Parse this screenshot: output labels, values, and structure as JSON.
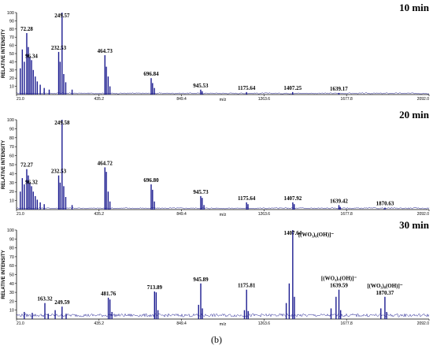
{
  "caption": "(b)",
  "chart_data": [
    {
      "type": "line",
      "title": "10 min",
      "xlabel": "m/z",
      "ylabel": "RELATIVE INTENSITY",
      "xlim": [
        21.0,
        2092.0
      ],
      "ylim": [
        0,
        100
      ],
      "x_ticks": [
        "21.0",
        "435.2",
        "849.4",
        "1263.6",
        "1677.8",
        "2092.0"
      ],
      "y_ticks": [
        "10",
        "20",
        "30",
        "40",
        "50",
        "60",
        "70",
        "80",
        "90",
        "100"
      ],
      "color": "#1b1b8f",
      "peaks": [
        {
          "x": 40,
          "y": 32
        },
        {
          "x": 50,
          "y": 55
        },
        {
          "x": 60,
          "y": 40
        },
        {
          "x": 72.28,
          "y": 75
        },
        {
          "x": 80,
          "y": 58
        },
        {
          "x": 88,
          "y": 46
        },
        {
          "x": 96.34,
          "y": 42
        },
        {
          "x": 105,
          "y": 30
        },
        {
          "x": 115,
          "y": 22
        },
        {
          "x": 125,
          "y": 16
        },
        {
          "x": 140,
          "y": 12
        },
        {
          "x": 160,
          "y": 8
        },
        {
          "x": 185,
          "y": 6
        },
        {
          "x": 232.53,
          "y": 52
        },
        {
          "x": 240,
          "y": 40
        },
        {
          "x": 249.57,
          "y": 100
        },
        {
          "x": 258,
          "y": 25
        },
        {
          "x": 268,
          "y": 15
        },
        {
          "x": 300,
          "y": 6
        },
        {
          "x": 464.73,
          "y": 48
        },
        {
          "x": 472,
          "y": 34
        },
        {
          "x": 481,
          "y": 22
        },
        {
          "x": 490,
          "y": 10
        },
        {
          "x": 696.84,
          "y": 20
        },
        {
          "x": 704,
          "y": 14
        },
        {
          "x": 713,
          "y": 8
        },
        {
          "x": 945.53,
          "y": 6
        },
        {
          "x": 953,
          "y": 4
        },
        {
          "x": 1175.64,
          "y": 3
        },
        {
          "x": 1407.25,
          "y": 3
        },
        {
          "x": 1639.17,
          "y": 2
        }
      ],
      "labels": [
        {
          "text": "72.28",
          "x": 72.28,
          "y": 75
        },
        {
          "text": "96.34",
          "x": 96.34,
          "y": 42
        },
        {
          "text": "232.53",
          "x": 232.53,
          "y": 52
        },
        {
          "text": "249.57",
          "x": 249.57,
          "y": 100
        },
        {
          "text": "464.73",
          "x": 464.73,
          "y": 48
        },
        {
          "text": "696.84",
          "x": 696.84,
          "y": 20
        },
        {
          "text": "945.53",
          "x": 945.53,
          "y": 6
        },
        {
          "text": "1175.64",
          "x": 1175.64,
          "y": 3
        },
        {
          "text": "1407.25",
          "x": 1407.25,
          "y": 3
        },
        {
          "text": "1639.17",
          "x": 1639.17,
          "y": 2
        }
      ]
    },
    {
      "type": "line",
      "title": "20 min",
      "xlabel": "m/z",
      "ylabel": "RELATIVE INTENSITY",
      "xlim": [
        21.0,
        2092.0
      ],
      "ylim": [
        0,
        100
      ],
      "x_ticks": [
        "21.0",
        "435.2",
        "849.4",
        "1263.6",
        "1677.8",
        "2092.0"
      ],
      "y_ticks": [
        "10",
        "20",
        "30",
        "40",
        "50",
        "60",
        "70",
        "80",
        "90",
        "100"
      ],
      "color": "#1b1b8f",
      "peaks": [
        {
          "x": 40,
          "y": 20
        },
        {
          "x": 50,
          "y": 35
        },
        {
          "x": 60,
          "y": 28
        },
        {
          "x": 72.27,
          "y": 45
        },
        {
          "x": 80,
          "y": 38
        },
        {
          "x": 88,
          "y": 30
        },
        {
          "x": 96.32,
          "y": 26
        },
        {
          "x": 105,
          "y": 20
        },
        {
          "x": 115,
          "y": 15
        },
        {
          "x": 125,
          "y": 11
        },
        {
          "x": 140,
          "y": 8
        },
        {
          "x": 160,
          "y": 6
        },
        {
          "x": 232.53,
          "y": 38
        },
        {
          "x": 240,
          "y": 30
        },
        {
          "x": 249.58,
          "y": 100
        },
        {
          "x": 258,
          "y": 26
        },
        {
          "x": 268,
          "y": 14
        },
        {
          "x": 300,
          "y": 5
        },
        {
          "x": 464.72,
          "y": 47
        },
        {
          "x": 472,
          "y": 42
        },
        {
          "x": 481,
          "y": 20
        },
        {
          "x": 490,
          "y": 9
        },
        {
          "x": 696.8,
          "y": 28
        },
        {
          "x": 704,
          "y": 22
        },
        {
          "x": 713,
          "y": 9
        },
        {
          "x": 945.73,
          "y": 15
        },
        {
          "x": 953,
          "y": 13
        },
        {
          "x": 962,
          "y": 5
        },
        {
          "x": 1175.64,
          "y": 8
        },
        {
          "x": 1183,
          "y": 6
        },
        {
          "x": 1407.92,
          "y": 8
        },
        {
          "x": 1415,
          "y": 6
        },
        {
          "x": 1639.42,
          "y": 5
        },
        {
          "x": 1646,
          "y": 3
        },
        {
          "x": 1870.63,
          "y": 2
        }
      ],
      "labels": [
        {
          "text": "72.27",
          "x": 72.27,
          "y": 45
        },
        {
          "text": "96.32",
          "x": 96.32,
          "y": 26
        },
        {
          "text": "232.53",
          "x": 232.53,
          "y": 38
        },
        {
          "text": "249.58",
          "x": 249.58,
          "y": 100
        },
        {
          "text": "464.72",
          "x": 464.72,
          "y": 47
        },
        {
          "text": "696.80",
          "x": 696.8,
          "y": 28
        },
        {
          "text": "945.73",
          "x": 945.73,
          "y": 15
        },
        {
          "text": "1175.64",
          "x": 1175.64,
          "y": 8
        },
        {
          "text": "1407.92",
          "x": 1407.92,
          "y": 8
        },
        {
          "text": "1639.42",
          "x": 1639.42,
          "y": 5
        },
        {
          "text": "1870.63",
          "x": 1870.63,
          "y": 2
        }
      ]
    },
    {
      "type": "line",
      "title": "30 min",
      "xlabel": "m/z",
      "ylabel": "RELATIVE INTENSITY",
      "xlim": [
        21.0,
        2092.0
      ],
      "ylim": [
        0,
        100
      ],
      "x_ticks": [
        "21.0",
        "435.2",
        "849.4",
        "1263.6",
        "1677.8",
        "2092.0"
      ],
      "y_ticks": [
        "10",
        "20",
        "30",
        "40",
        "50",
        "60",
        "70",
        "80",
        "90",
        "100"
      ],
      "color": "#1b1b8f",
      "peaks": [
        {
          "x": 60,
          "y": 8
        },
        {
          "x": 100,
          "y": 7
        },
        {
          "x": 163.32,
          "y": 18
        },
        {
          "x": 180,
          "y": 6
        },
        {
          "x": 215,
          "y": 10
        },
        {
          "x": 249.59,
          "y": 14
        },
        {
          "x": 270,
          "y": 6
        },
        {
          "x": 481.76,
          "y": 24
        },
        {
          "x": 490,
          "y": 22
        },
        {
          "x": 500,
          "y": 8
        },
        {
          "x": 713.89,
          "y": 31
        },
        {
          "x": 722,
          "y": 30
        },
        {
          "x": 731,
          "y": 10
        },
        {
          "x": 935,
          "y": 16
        },
        {
          "x": 945.89,
          "y": 40
        },
        {
          "x": 954,
          "y": 12
        },
        {
          "x": 1165,
          "y": 10
        },
        {
          "x": 1175.81,
          "y": 33
        },
        {
          "x": 1184,
          "y": 9
        },
        {
          "x": 1375,
          "y": 18
        },
        {
          "x": 1390,
          "y": 40
        },
        {
          "x": 1407.64,
          "y": 100
        },
        {
          "x": 1416,
          "y": 25
        },
        {
          "x": 1600,
          "y": 12
        },
        {
          "x": 1625,
          "y": 25
        },
        {
          "x": 1639.59,
          "y": 33
        },
        {
          "x": 1648,
          "y": 10
        },
        {
          "x": 1850,
          "y": 12
        },
        {
          "x": 1870.37,
          "y": 25
        },
        {
          "x": 1879,
          "y": 8
        }
      ],
      "labels": [
        {
          "text": "163.32",
          "x": 163.32,
          "y": 18
        },
        {
          "text": "249.59",
          "x": 249.59,
          "y": 14
        },
        {
          "text": "481.76",
          "x": 481.76,
          "y": 24
        },
        {
          "text": "713.89",
          "x": 713.89,
          "y": 31
        },
        {
          "text": "945.89",
          "x": 945.89,
          "y": 40
        },
        {
          "text": "1175.81",
          "x": 1175.81,
          "y": 33
        },
        {
          "text": "1407.64",
          "x": 1407.64,
          "y": 100
        },
        {
          "text": "1639.59",
          "x": 1639.59,
          "y": 33
        },
        {
          "text": "1870.37",
          "x": 1870.37,
          "y": 25
        }
      ],
      "annotations": [
        {
          "text": "[(WO₃)₆(OH)]⁻",
          "x": 1407.64,
          "y": 100
        },
        {
          "text": "[(WO₃)₇(OH)]⁻",
          "x": 1639.59,
          "y": 33
        },
        {
          "text": "[(WO₃)₈(OH)]⁻",
          "x": 1870.37,
          "y": 25
        }
      ]
    }
  ]
}
